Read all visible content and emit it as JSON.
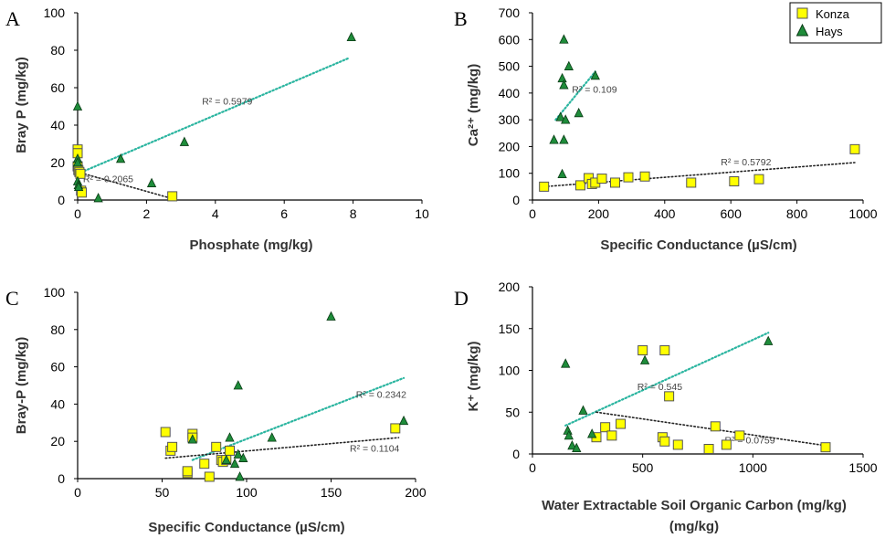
{
  "colors": {
    "konza_fill": "#FFFF00",
    "konza_stroke": "#555555",
    "hays_fill": "#1E8C3A",
    "hays_stroke": "#0A3A15",
    "hays_trend": "#2BB5A0",
    "konza_trend": "#222222"
  },
  "legend": {
    "position": "top-right",
    "entries": [
      {
        "name": "Konza",
        "marker": "square"
      },
      {
        "name": "Hays",
        "marker": "triangle"
      }
    ]
  },
  "chart_data": [
    {
      "panel": "A",
      "type": "scatter",
      "xlabel": "Phosphate (mg/kg)",
      "ylabel": "Bray P (mg/kg)",
      "xlim": [
        0,
        10
      ],
      "ylim": [
        0,
        100
      ],
      "xticks": [
        0,
        2,
        4,
        6,
        8,
        10
      ],
      "yticks": [
        0,
        20,
        40,
        60,
        80,
        100
      ],
      "xtick_labels": [
        "0",
        "2",
        "4",
        "6",
        "8",
        "10"
      ],
      "ytick_labels": [
        "0",
        "20",
        "40",
        "60",
        "80",
        "100"
      ],
      "series": [
        {
          "name": "Konza",
          "marker": "square",
          "x": [
            0.0,
            0.0,
            0.0,
            0.02,
            0.05,
            0.08,
            0.1,
            0.12,
            2.75
          ],
          "y": [
            27,
            25,
            18,
            16,
            15,
            14,
            5,
            4,
            2
          ]
        },
        {
          "name": "Hays",
          "marker": "triangle",
          "x": [
            0.0,
            0.0,
            0.0,
            0.0,
            0.02,
            0.03,
            0.6,
            1.25,
            2.15,
            3.1,
            7.95
          ],
          "y": [
            50,
            22,
            20,
            10,
            8,
            7,
            1,
            22,
            9,
            31,
            87
          ]
        }
      ],
      "trendlines": [
        {
          "series": "Hays",
          "x": [
            0.0,
            7.9
          ],
          "y": [
            14,
            76
          ],
          "label": "R² = 0.5979"
        },
        {
          "series": "Konza",
          "x": [
            0.0,
            2.7
          ],
          "y": [
            15,
            1
          ],
          "label": "R² = 0.2065"
        }
      ]
    },
    {
      "panel": "B",
      "type": "scatter",
      "xlabel": "Specific Conductance (µS/cm)",
      "ylabel": "Ca²⁺ (mg/kg)",
      "xlim": [
        0,
        1000
      ],
      "ylim": [
        0,
        700
      ],
      "xticks": [
        0,
        200,
        400,
        600,
        800,
        1000
      ],
      "yticks": [
        0,
        100,
        200,
        300,
        400,
        500,
        600,
        700
      ],
      "xtick_labels": [
        "0",
        "200",
        "400",
        "600",
        "800",
        "1000"
      ],
      "ytick_labels": [
        "0",
        "100",
        "200",
        "300",
        "400",
        "500",
        "600",
        "700"
      ],
      "series": [
        {
          "name": "Konza",
          "marker": "square",
          "x": [
            35,
            145,
            170,
            180,
            190,
            210,
            250,
            290,
            340,
            480,
            610,
            685,
            975
          ],
          "y": [
            50,
            55,
            82,
            60,
            65,
            80,
            65,
            85,
            88,
            65,
            70,
            78,
            190
          ]
        },
        {
          "name": "Hays",
          "marker": "triangle",
          "x": [
            65,
            85,
            90,
            95,
            95,
            100,
            110,
            140,
            190,
            90,
            95
          ],
          "y": [
            225,
            310,
            455,
            430,
            600,
            300,
            500,
            325,
            465,
            97,
            225
          ]
        }
      ],
      "trendlines": [
        {
          "series": "Hays",
          "x": [
            70,
            190
          ],
          "y": [
            300,
            480
          ],
          "label": "R² = 0.109"
        },
        {
          "series": "Konza",
          "x": [
            35,
            975
          ],
          "y": [
            50,
            140
          ],
          "label": "R² = 0.5792"
        }
      ]
    },
    {
      "panel": "C",
      "type": "scatter",
      "xlabel": "Specific Conductance (µS/cm)",
      "ylabel": "Bray-P (mg/kg)",
      "xlim": [
        0,
        200
      ],
      "ylim": [
        0,
        100
      ],
      "xticks": [
        0,
        50,
        100,
        150,
        200
      ],
      "yticks": [
        0,
        20,
        40,
        60,
        80,
        100
      ],
      "xtick_labels": [
        "0",
        "50",
        "100",
        "150",
        "200"
      ],
      "ytick_labels": [
        "0",
        "20",
        "40",
        "60",
        "80",
        "100"
      ],
      "series": [
        {
          "name": "Konza",
          "marker": "square",
          "x": [
            52,
            55,
            56,
            65,
            65,
            68,
            68,
            75,
            78,
            82,
            85,
            86,
            88,
            90,
            188
          ],
          "y": [
            25,
            15,
            17,
            3,
            4,
            24,
            22,
            8,
            1,
            17,
            10,
            9,
            10,
            15,
            27
          ]
        },
        {
          "name": "Hays",
          "marker": "triangle",
          "x": [
            68,
            88,
            90,
            93,
            95,
            95,
            96,
            98,
            115,
            150,
            193
          ],
          "y": [
            21,
            10,
            22,
            8,
            50,
            13,
            1,
            11,
            22,
            87,
            31
          ]
        }
      ],
      "trendlines": [
        {
          "series": "Hays",
          "x": [
            68,
            193
          ],
          "y": [
            10,
            54
          ],
          "label": "R² = 0.2342"
        },
        {
          "series": "Konza",
          "x": [
            52,
            190
          ],
          "y": [
            11,
            22
          ],
          "label": "R² = 0.1104"
        }
      ]
    },
    {
      "panel": "D",
      "type": "scatter",
      "xlabel": "Water Extractable Soil Organic Carbon (mg/kg)",
      "ylabel": "K⁺ (mg/kg)",
      "xlim": [
        0,
        1500
      ],
      "ylim": [
        0,
        200
      ],
      "xticks": [
        0,
        500,
        1000,
        1500
      ],
      "yticks": [
        0,
        50,
        100,
        150,
        200
      ],
      "xtick_labels": [
        "0",
        "500",
        "1000",
        "1500"
      ],
      "ytick_labels": [
        "0",
        "50",
        "100",
        "150",
        "200"
      ],
      "series": [
        {
          "name": "Konza",
          "marker": "square",
          "x": [
            290,
            330,
            360,
            400,
            500,
            590,
            600,
            600,
            620,
            660,
            800,
            830,
            880,
            940,
            1330
          ],
          "y": [
            20,
            32,
            22,
            36,
            124,
            20,
            15,
            124,
            69,
            11,
            6,
            33,
            11,
            22,
            8
          ]
        },
        {
          "name": "Hays",
          "marker": "triangle",
          "x": [
            150,
            160,
            165,
            180,
            200,
            230,
            270,
            510,
            1070
          ],
          "y": [
            108,
            28,
            22,
            10,
            7,
            52,
            24,
            112,
            135
          ]
        }
      ],
      "trendlines": [
        {
          "series": "Hays",
          "x": [
            150,
            1070
          ],
          "y": [
            34,
            145
          ],
          "label": "R² = 0.545"
        },
        {
          "series": "Konza",
          "x": [
            290,
            1330
          ],
          "y": [
            50,
            10
          ],
          "label": "R² = 0.0759"
        }
      ]
    }
  ]
}
